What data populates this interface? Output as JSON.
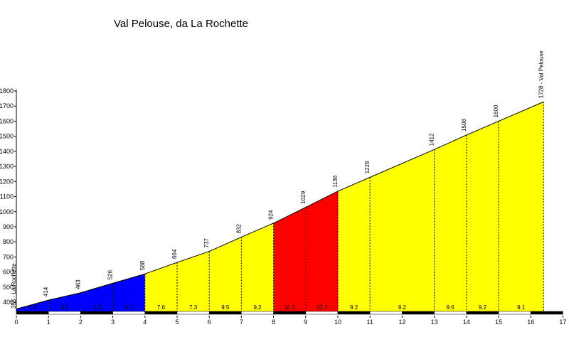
{
  "chart_data": {
    "type": "area",
    "title": "Val Pelouse, da La Rochette",
    "xlabel": "",
    "ylabel": "",
    "xlim": [
      0,
      17
    ],
    "ylim": [
      320,
      1800
    ],
    "xticks": [
      0,
      1,
      2,
      3,
      4,
      5,
      6,
      7,
      8,
      9,
      10,
      11,
      12,
      13,
      14,
      15,
      16,
      17
    ],
    "yticks": [
      400,
      500,
      600,
      700,
      800,
      900,
      1000,
      1100,
      1200,
      1300,
      1400,
      1500,
      1600,
      1700,
      1800
    ],
    "grid": false,
    "profile": {
      "x": [
        0,
        1,
        2,
        3,
        4,
        5,
        6,
        7,
        8,
        9,
        10,
        11,
        13,
        14,
        15,
        16.4
      ],
      "elevation": [
        355,
        414,
        463,
        526,
        588,
        664,
        737,
        832,
        924,
        1029,
        1136,
        1228,
        1412,
        1508,
        1600,
        1728
      ]
    },
    "elevation_labels": [
      {
        "x": 0,
        "text": "355 - La Rochette"
      },
      {
        "x": 1,
        "text": "414"
      },
      {
        "x": 2,
        "text": "463"
      },
      {
        "x": 3,
        "text": "526"
      },
      {
        "x": 4,
        "text": "588"
      },
      {
        "x": 5,
        "text": "664"
      },
      {
        "x": 6,
        "text": "737"
      },
      {
        "x": 7,
        "text": "832"
      },
      {
        "x": 8,
        "text": "924"
      },
      {
        "x": 9,
        "text": "1029"
      },
      {
        "x": 10,
        "text": "1136"
      },
      {
        "x": 11,
        "text": "1228"
      },
      {
        "x": 13,
        "text": "1412"
      },
      {
        "x": 14,
        "text": "1508"
      },
      {
        "x": 15,
        "text": "1600"
      },
      {
        "x": 16.4,
        "text": "1728 - Val Pelouse"
      }
    ],
    "segments": [
      {
        "x0": 0,
        "x1": 1,
        "gradient": "5.9",
        "color": "#0000ff"
      },
      {
        "x0": 1,
        "x1": 2,
        "gradient": "4.9",
        "color": "#0000ff"
      },
      {
        "x0": 2,
        "x1": 3,
        "gradient": "6.3",
        "color": "#0000ff"
      },
      {
        "x0": 3,
        "x1": 4,
        "gradient": "6.2",
        "color": "#0000ff"
      },
      {
        "x0": 4,
        "x1": 5,
        "gradient": "7.6",
        "color": "#ffff00"
      },
      {
        "x0": 5,
        "x1": 6,
        "gradient": "7.3",
        "color": "#ffff00"
      },
      {
        "x0": 6,
        "x1": 7,
        "gradient": "9.5",
        "color": "#ffff00"
      },
      {
        "x0": 7,
        "x1": 8,
        "gradient": "9.2",
        "color": "#ffff00"
      },
      {
        "x0": 8,
        "x1": 9,
        "gradient": "10.5",
        "color": "#ff0000"
      },
      {
        "x0": 9,
        "x1": 10,
        "gradient": "10.7",
        "color": "#ff0000"
      },
      {
        "x0": 10,
        "x1": 11,
        "gradient": "9.2",
        "color": "#ffff00"
      },
      {
        "x0": 11,
        "x1": 13,
        "gradient": "9.2",
        "color": "#ffff00"
      },
      {
        "x0": 13,
        "x1": 14,
        "gradient": "9.6",
        "color": "#ffff00"
      },
      {
        "x0": 14,
        "x1": 15,
        "gradient": "9.2",
        "color": "#ffff00"
      },
      {
        "x0": 15,
        "x1": 16.4,
        "gradient": "9.1",
        "color": "#ffff00"
      }
    ]
  }
}
